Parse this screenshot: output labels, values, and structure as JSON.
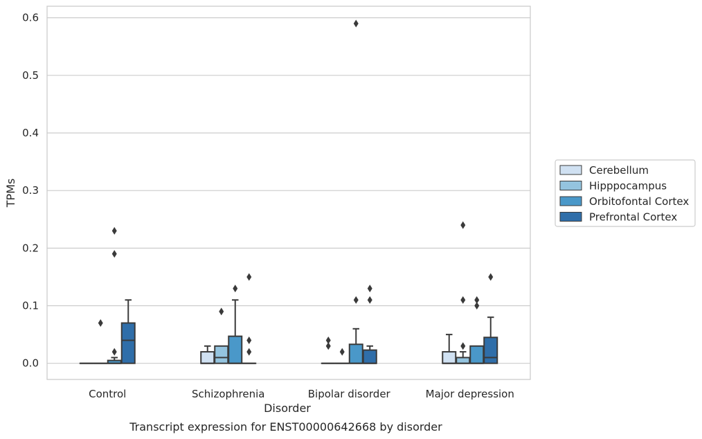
{
  "chart_data": {
    "type": "boxplot",
    "title": "Transcript expression for ENST00000642668 by disorder",
    "xlabel": "Disorder",
    "ylabel": "TPMs",
    "ylim": [
      -0.028,
      0.62
    ],
    "yticks": [
      0.0,
      0.1,
      0.2,
      0.3,
      0.4,
      0.5,
      0.6
    ],
    "ytick_labels": [
      "0.0",
      "0.1",
      "0.2",
      "0.3",
      "0.4",
      "0.5",
      "0.6"
    ],
    "categories": [
      "Control",
      "Schizophrenia",
      "Bipolar disorder",
      "Major depression"
    ],
    "grid": "horizontal",
    "legend_position": "right",
    "series": [
      {
        "name": "Cerebellum",
        "color": "#d0e1f2",
        "boxes": [
          {
            "q1": 0.0,
            "median": 0.0,
            "q3": 0.0,
            "whisker_low": 0.0,
            "whisker_high": 0.0,
            "outliers": []
          },
          {
            "q1": 0.0,
            "median": 0.0,
            "q3": 0.02,
            "whisker_low": 0.0,
            "whisker_high": 0.03,
            "outliers": []
          },
          {
            "q1": 0.0,
            "median": 0.0,
            "q3": 0.0,
            "whisker_low": 0.0,
            "whisker_high": 0.0,
            "outliers": [
              0.03,
              0.04
            ]
          },
          {
            "q1": 0.0,
            "median": 0.0,
            "q3": 0.02,
            "whisker_low": 0.0,
            "whisker_high": 0.05,
            "outliers": []
          }
        ]
      },
      {
        "name": "Hipppocampus",
        "color": "#94c4df",
        "boxes": [
          {
            "q1": 0.0,
            "median": 0.0,
            "q3": 0.0,
            "whisker_low": 0.0,
            "whisker_high": 0.0,
            "outliers": [
              0.07
            ]
          },
          {
            "q1": 0.0,
            "median": 0.01,
            "q3": 0.03,
            "whisker_low": 0.0,
            "whisker_high": 0.03,
            "outliers": [
              0.09
            ]
          },
          {
            "q1": 0.0,
            "median": 0.0,
            "q3": 0.0,
            "whisker_low": 0.0,
            "whisker_high": 0.0,
            "outliers": [
              0.02
            ]
          },
          {
            "q1": 0.0,
            "median": 0.0,
            "q3": 0.01,
            "whisker_low": 0.0,
            "whisker_high": 0.02,
            "outliers": [
              0.03,
              0.11,
              0.24
            ]
          }
        ]
      },
      {
        "name": "Orbitofontal Cortex",
        "color": "#4a98c9",
        "boxes": [
          {
            "q1": 0.0,
            "median": 0.0,
            "q3": 0.005,
            "whisker_low": 0.0,
            "whisker_high": 0.01,
            "outliers": [
              0.02,
              0.19,
              0.23
            ]
          },
          {
            "q1": 0.0,
            "median": 0.0,
            "q3": 0.047,
            "whisker_low": 0.0,
            "whisker_high": 0.11,
            "outliers": [
              0.13
            ]
          },
          {
            "q1": 0.0,
            "median": 0.0,
            "q3": 0.033,
            "whisker_low": 0.0,
            "whisker_high": 0.06,
            "outliers": [
              0.11,
              0.59
            ]
          },
          {
            "q1": 0.0,
            "median": 0.0,
            "q3": 0.03,
            "whisker_low": 0.0,
            "whisker_high": 0.03,
            "outliers": [
              0.1,
              0.11
            ]
          }
        ]
      },
      {
        "name": "Prefrontal Cortex",
        "color": "#2f6ea9",
        "boxes": [
          {
            "q1": 0.0,
            "median": 0.04,
            "q3": 0.07,
            "whisker_low": 0.0,
            "whisker_high": 0.11,
            "outliers": []
          },
          {
            "q1": 0.0,
            "median": 0.0,
            "q3": 0.0,
            "whisker_low": 0.0,
            "whisker_high": 0.0,
            "outliers": [
              0.02,
              0.04,
              0.15
            ]
          },
          {
            "q1": 0.0,
            "median": 0.0,
            "q3": 0.023,
            "whisker_low": 0.0,
            "whisker_high": 0.03,
            "outliers": [
              0.11,
              0.13
            ]
          },
          {
            "q1": 0.0,
            "median": 0.01,
            "q3": 0.045,
            "whisker_low": 0.0,
            "whisker_high": 0.08,
            "outliers": [
              0.15
            ]
          }
        ]
      }
    ]
  }
}
